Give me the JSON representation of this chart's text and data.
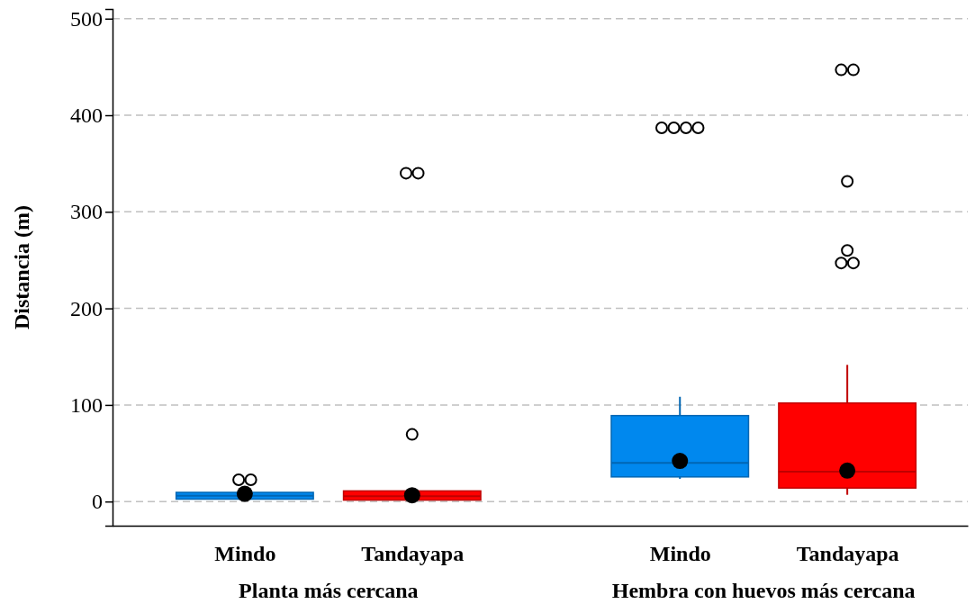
{
  "chart_data": {
    "type": "box",
    "ylabel": "Distancia (m)",
    "categories": [
      "Mindo",
      "Tandayapa",
      "Mindo",
      "Tandayapa"
    ],
    "colors": [
      "#0088ee",
      "#ff0000",
      "#0088ee",
      "#ff0000"
    ],
    "boxes": [
      {
        "low": 1,
        "q1": 2.5,
        "median": 6,
        "q3": 9.5,
        "high": 10,
        "mean": 8,
        "outliers": [
          22.5,
          22.5
        ]
      },
      {
        "low": 1.5,
        "q1": 1.5,
        "median": 5.5,
        "q3": 11,
        "high": 14,
        "mean": 6.5,
        "outliers": [
          69.5,
          340,
          340
        ]
      },
      {
        "low": 23.5,
        "q1": 25.5,
        "median": 40,
        "q3": 89,
        "high": 108.5,
        "mean": 42,
        "outliers": [
          387,
          387,
          387,
          387
        ]
      },
      {
        "low": 7,
        "q1": 14,
        "median": 31,
        "q3": 102,
        "high": 141.5,
        "mean": 32,
        "outliers": [
          247,
          247,
          260,
          331.5,
          447,
          447
        ]
      }
    ],
    "ylim": [
      -25,
      510
    ],
    "yticks": [
      0,
      100,
      200,
      300,
      400,
      500
    ],
    "grid": "y",
    "annotations": [
      "Planta más cercana",
      "Hembra con huevos más cercana"
    ]
  }
}
